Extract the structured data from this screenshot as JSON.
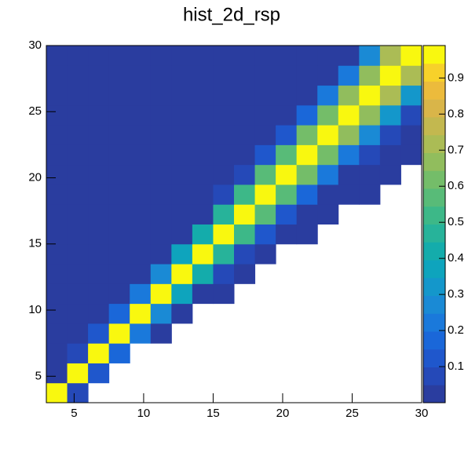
{
  "chart_data": {
    "type": "heatmap",
    "title": "hist_2d_rsp",
    "xbins": [
      3,
      4.5,
      6,
      7.5,
      9,
      10.5,
      12,
      13.5,
      15,
      16.5,
      18,
      19.5,
      21,
      22.5,
      24,
      25.5,
      27,
      28.5,
      30
    ],
    "ybins": [
      3,
      4.5,
      6,
      7.5,
      9,
      10.5,
      12,
      13.5,
      15,
      16.5,
      18,
      19.5,
      21,
      22.5,
      24,
      25.5,
      27,
      28.5,
      30
    ],
    "z": [
      [
        0.95,
        0.05,
        null,
        null,
        null,
        null,
        null,
        null,
        null,
        null,
        null,
        null,
        null,
        null,
        null,
        null,
        null,
        null
      ],
      [
        0.02,
        0.95,
        0.1,
        null,
        null,
        null,
        null,
        null,
        null,
        null,
        null,
        null,
        null,
        null,
        null,
        null,
        null,
        null
      ],
      [
        0.01,
        0.05,
        0.95,
        0.16,
        null,
        null,
        null,
        null,
        null,
        null,
        null,
        null,
        null,
        null,
        null,
        null,
        null,
        null
      ],
      [
        0.01,
        0.01,
        0.1,
        0.95,
        0.23,
        0.01,
        null,
        null,
        null,
        null,
        null,
        null,
        null,
        null,
        null,
        null,
        null,
        null
      ],
      [
        0.01,
        0.01,
        0.01,
        0.16,
        0.95,
        0.29,
        0.02,
        null,
        null,
        null,
        null,
        null,
        null,
        null,
        null,
        null,
        null,
        null
      ],
      [
        0.01,
        0.01,
        0.01,
        0.01,
        0.23,
        0.95,
        0.35,
        0.03,
        0.01,
        null,
        null,
        null,
        null,
        null,
        null,
        null,
        null,
        null
      ],
      [
        0.01,
        0.01,
        0.01,
        0.01,
        0.01,
        0.29,
        0.95,
        0.41,
        0.05,
        0.01,
        null,
        null,
        null,
        null,
        null,
        null,
        null,
        null
      ],
      [
        0.01,
        0.01,
        0.01,
        0.01,
        0.01,
        0.01,
        0.35,
        0.95,
        0.46,
        0.08,
        0.01,
        null,
        null,
        null,
        null,
        null,
        null,
        null
      ],
      [
        0.01,
        0.01,
        0.01,
        0.01,
        0.01,
        0.01,
        0.02,
        0.41,
        0.95,
        0.5,
        0.1,
        0.01,
        0.01,
        null,
        null,
        null,
        null,
        null
      ],
      [
        0.01,
        0.01,
        0.01,
        0.01,
        0.01,
        0.01,
        0.01,
        0.03,
        0.46,
        0.95,
        0.55,
        0.13,
        0.02,
        0.01,
        null,
        null,
        null,
        null
      ],
      [
        0.01,
        0.01,
        0.01,
        0.01,
        0.01,
        0.01,
        0.01,
        0.01,
        0.05,
        0.5,
        0.95,
        0.58,
        0.17,
        0.03,
        0.01,
        0.01,
        null,
        null
      ],
      [
        0.01,
        0.01,
        0.01,
        0.01,
        0.01,
        0.01,
        0.01,
        0.01,
        0.01,
        0.08,
        0.55,
        0.95,
        0.61,
        0.2,
        0.04,
        0.01,
        0.01,
        null
      ],
      [
        0.01,
        0.01,
        0.01,
        0.01,
        0.01,
        0.01,
        0.01,
        0.01,
        0.01,
        0.01,
        0.1,
        0.58,
        0.95,
        0.64,
        0.23,
        0.05,
        0.01,
        0.01
      ],
      [
        0.01,
        0.01,
        0.01,
        0.01,
        0.01,
        0.01,
        0.01,
        0.01,
        0.01,
        0.01,
        0.01,
        0.13,
        0.61,
        0.95,
        0.67,
        0.26,
        0.07,
        0.01
      ],
      [
        0.01,
        0.01,
        0.01,
        0.01,
        0.01,
        0.01,
        0.01,
        0.01,
        0.01,
        0.01,
        0.01,
        0.01,
        0.17,
        0.64,
        0.95,
        0.69,
        0.3,
        0.09
      ],
      [
        0.01,
        0.01,
        0.01,
        0.01,
        0.01,
        0.01,
        0.01,
        0.01,
        0.01,
        0.01,
        0.01,
        0.01,
        0.02,
        0.2,
        0.67,
        0.95,
        0.71,
        0.33
      ],
      [
        0.01,
        0.01,
        0.01,
        0.01,
        0.01,
        0.01,
        0.01,
        0.01,
        0.01,
        0.01,
        0.01,
        0.01,
        0.01,
        0.03,
        0.23,
        0.69,
        0.95,
        0.73
      ],
      [
        0.01,
        0.01,
        0.01,
        0.01,
        0.01,
        0.01,
        0.01,
        0.01,
        0.01,
        0.01,
        0.01,
        0.01,
        0.01,
        0.01,
        0.04,
        0.26,
        0.71,
        0.95
      ]
    ],
    "xlim": [
      3,
      30
    ],
    "xticks": [
      5,
      10,
      15,
      20,
      25,
      30
    ],
    "ylim": [
      3,
      30
    ],
    "yticks": [
      5,
      10,
      15,
      20,
      25,
      30
    ],
    "zlim": [
      0,
      0.99
    ],
    "zticks": [
      0.1,
      0.2,
      0.3,
      0.4,
      0.5,
      0.6,
      0.7,
      0.8,
      0.9
    ],
    "colors": [
      "#2a3d9f",
      "#2549b8",
      "#1f57cc",
      "#1a67d9",
      "#1a79db",
      "#1a8ad5",
      "#1497cb",
      "#0ea4bd",
      "#14acab",
      "#27b39a",
      "#3db888",
      "#58bb78",
      "#74bd69",
      "#91bd5d",
      "#abbc55",
      "#c3b84f",
      "#d9b549",
      "#ecbb3c",
      "#f7d12a",
      "#f9f80f"
    ]
  }
}
